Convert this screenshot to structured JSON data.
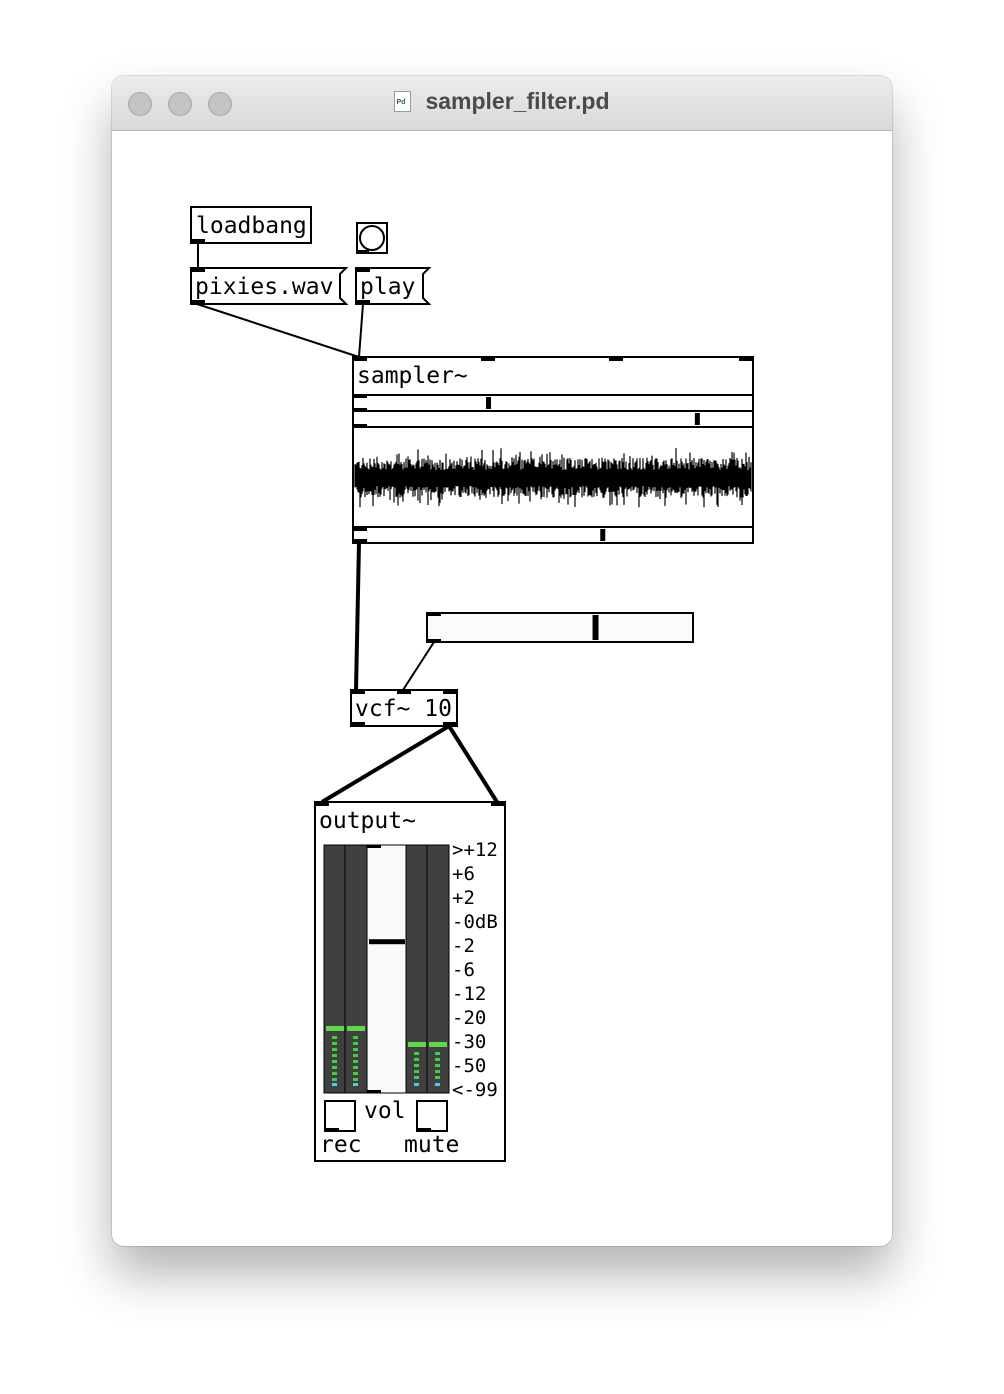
{
  "window": {
    "title": "sampler_filter.pd",
    "buttons": [
      "close",
      "minimize",
      "zoom"
    ]
  },
  "patch": {
    "objects": {
      "loadbang": "loadbang",
      "sampler": "sampler~",
      "vcf": "vcf~ 10",
      "output": "output~"
    },
    "messages": {
      "file": "pixies.wav",
      "play": "play"
    },
    "bang": {
      "icon": "bang-circle-icon"
    },
    "hslider": {
      "value_fraction": 0.63
    },
    "sampler_sliders": {
      "start_position": 0.33,
      "end_position": 0.86,
      "playhead_position": 0.62
    },
    "output": {
      "meter_scale": [
        ">+12",
        "+6",
        "+2",
        "-0dB",
        "-2",
        "-6",
        "-12",
        "-20",
        "-30",
        "-50",
        "<-99"
      ],
      "vol_label": "vol",
      "rec_label": "rec",
      "mute_label": "mute",
      "volume_fraction": 0.62,
      "level_left_db": -30,
      "level_right_db": -30,
      "meter_colors": {
        "peak": "#5fd84a",
        "level": "#3fcf3f",
        "floor": "#59c7e8",
        "background": "#404040"
      }
    }
  }
}
